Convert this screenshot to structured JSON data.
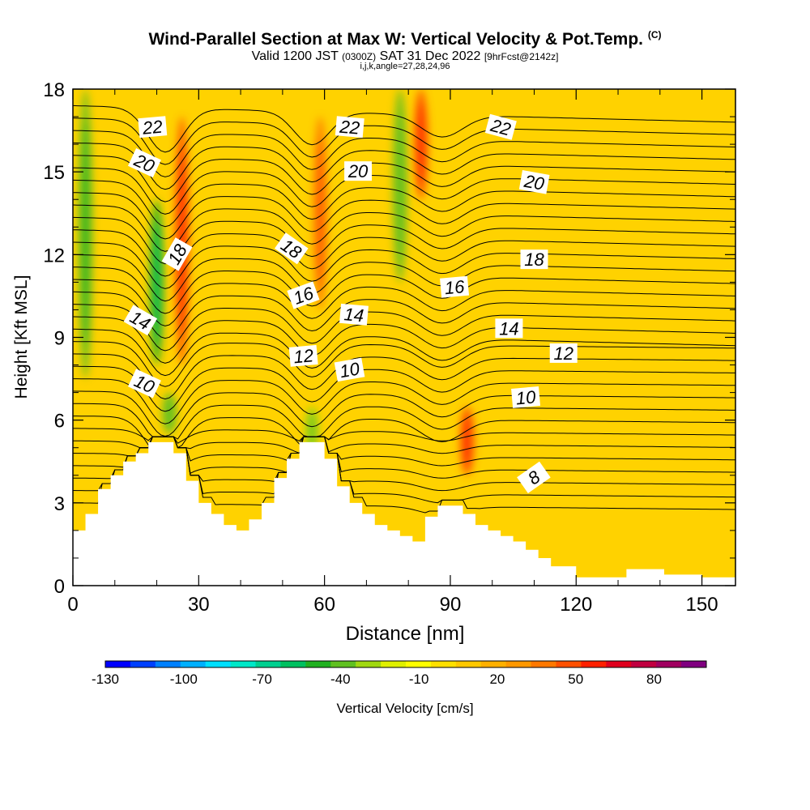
{
  "title": {
    "main": "Wind-Parallel Section at Max W: Vertical Velocity & Pot.Temp.",
    "main_tag": "(C)",
    "line2_a": "Valid 1200 JST",
    "line2_b": "(0300Z)",
    "line2_c": "SAT 31 Dec 2022",
    "line2_d": "[9hrFcst@2142z]",
    "line3": "i,j,k,angle=27,28,24,96"
  },
  "colors": {
    "terrain": "#ffffff",
    "contour": "#000000",
    "background_field": "#ffd200"
  },
  "chart_data": {
    "type": "heatmap",
    "xlabel": "Distance [nm]",
    "ylabel": "Height [Kft MSL]",
    "xlim": [
      0,
      158
    ],
    "ylim": [
      0,
      18
    ],
    "x_ticks": [
      "0",
      "30",
      "60",
      "90",
      "120",
      "150"
    ],
    "y_ticks": [
      "0",
      "3",
      "6",
      "9",
      "12",
      "15",
      "18"
    ],
    "x_tick_values": [
      0,
      30,
      60,
      90,
      120,
      150
    ],
    "y_tick_values": [
      0,
      3,
      6,
      9,
      12,
      15,
      18
    ],
    "grid": false,
    "field": "Vertical Velocity [cm/s] (color) & Pot.Temp. [C] (contours)",
    "colorbar": {
      "label": "Vertical Velocity [cm/s]",
      "tick_labels": [
        "-130",
        "-100",
        "-70",
        "-40",
        "-10",
        "20",
        "50",
        "80"
      ],
      "tick_values": [
        -130,
        -100,
        -70,
        -40,
        -10,
        20,
        50,
        80
      ],
      "min": -130,
      "max": 100,
      "colors": [
        "#0000ff",
        "#0040ff",
        "#0080ff",
        "#00b0ff",
        "#00e0ff",
        "#00e8c8",
        "#00d090",
        "#00c060",
        "#20b020",
        "#60c020",
        "#a0d810",
        "#e0f000",
        "#ffff00",
        "#ffe000",
        "#ffc800",
        "#ffb000",
        "#ff9800",
        "#ff7800",
        "#ff5000",
        "#ff2000",
        "#e0001e",
        "#c00040",
        "#a00060",
        "#800080"
      ]
    },
    "terrain_kft": [
      {
        "x": 0,
        "y": 2.0
      },
      {
        "x": 3,
        "y": 2.6
      },
      {
        "x": 6,
        "y": 3.5
      },
      {
        "x": 9,
        "y": 4.0
      },
      {
        "x": 12,
        "y": 4.5
      },
      {
        "x": 15,
        "y": 4.8
      },
      {
        "x": 18,
        "y": 5.2
      },
      {
        "x": 21,
        "y": 5.2
      },
      {
        "x": 24,
        "y": 4.8
      },
      {
        "x": 27,
        "y": 3.8
      },
      {
        "x": 30,
        "y": 3.0
      },
      {
        "x": 33,
        "y": 2.6
      },
      {
        "x": 36,
        "y": 2.2
      },
      {
        "x": 39,
        "y": 2.0
      },
      {
        "x": 42,
        "y": 2.4
      },
      {
        "x": 45,
        "y": 3.0
      },
      {
        "x": 48,
        "y": 3.9
      },
      {
        "x": 51,
        "y": 4.6
      },
      {
        "x": 54,
        "y": 5.2
      },
      {
        "x": 57,
        "y": 5.2
      },
      {
        "x": 60,
        "y": 4.6
      },
      {
        "x": 63,
        "y": 3.6
      },
      {
        "x": 66,
        "y": 3.0
      },
      {
        "x": 69,
        "y": 2.6
      },
      {
        "x": 72,
        "y": 2.2
      },
      {
        "x": 75,
        "y": 2.0
      },
      {
        "x": 78,
        "y": 1.8
      },
      {
        "x": 81,
        "y": 1.6
      },
      {
        "x": 84,
        "y": 2.5
      },
      {
        "x": 87,
        "y": 2.9
      },
      {
        "x": 90,
        "y": 2.9
      },
      {
        "x": 93,
        "y": 2.6
      },
      {
        "x": 96,
        "y": 2.2
      },
      {
        "x": 99,
        "y": 2.0
      },
      {
        "x": 102,
        "y": 1.8
      },
      {
        "x": 105,
        "y": 1.6
      },
      {
        "x": 108,
        "y": 1.3
      },
      {
        "x": 111,
        "y": 1.0
      },
      {
        "x": 114,
        "y": 0.7
      },
      {
        "x": 117,
        "y": 0.7
      },
      {
        "x": 120,
        "y": 0.3
      },
      {
        "x": 126,
        "y": 0.3
      },
      {
        "x": 132,
        "y": 0.6
      },
      {
        "x": 138,
        "y": 0.6
      },
      {
        "x": 141,
        "y": 0.4
      },
      {
        "x": 150,
        "y": 0.3
      },
      {
        "x": 158,
        "y": 0.3
      }
    ],
    "velocity_features": [
      {
        "x": 3,
        "y0": 7.5,
        "y1": 18,
        "value": -40
      },
      {
        "x": 20,
        "y0": 8.0,
        "y1": 14,
        "value": -45
      },
      {
        "x": 23,
        "y0": 5.5,
        "y1": 7.0,
        "value": -35
      },
      {
        "x": 26,
        "y0": 8.0,
        "y1": 17,
        "value": 50
      },
      {
        "x": 57,
        "y0": 4.8,
        "y1": 6.5,
        "value": -30
      },
      {
        "x": 59,
        "y0": 10,
        "y1": 17,
        "value": 40
      },
      {
        "x": 78,
        "y0": 11,
        "y1": 18,
        "value": -35
      },
      {
        "x": 83,
        "y0": 14,
        "y1": 18,
        "value": 45
      },
      {
        "x": 94,
        "y0": 4.0,
        "y1": 6.5,
        "value": 45
      }
    ],
    "theta_contours": [
      {
        "label": "8",
        "y": 3.9,
        "label_x": 110
      },
      {
        "label": "10",
        "y": 6.9,
        "label_x": 108
      },
      {
        "label": "12",
        "y": 8.4,
        "label_x": 117
      },
      {
        "label": "14",
        "y": 9.3,
        "label_x": 104
      },
      {
        "label": "16",
        "y": 10.8,
        "label_x": 91
      },
      {
        "label": "18",
        "y": 11.8,
        "label_x": 110
      },
      {
        "label": "20",
        "y": 14.5,
        "label_x": 110
      },
      {
        "label": "22",
        "y": 16.6,
        "label_x": 102
      }
    ],
    "contour_labels": [
      {
        "text": "22",
        "x": 19,
        "y": 16.6,
        "rot": -5
      },
      {
        "text": "20",
        "x": 17,
        "y": 15.3,
        "rot": 25
      },
      {
        "text": "18",
        "x": 25,
        "y": 12.0,
        "rot": -60
      },
      {
        "text": "14",
        "x": 16,
        "y": 9.6,
        "rot": 30
      },
      {
        "text": "10",
        "x": 17,
        "y": 7.3,
        "rot": 25
      },
      {
        "text": "22",
        "x": 66,
        "y": 16.6,
        "rot": 5
      },
      {
        "text": "20",
        "x": 68,
        "y": 15.0,
        "rot": 0
      },
      {
        "text": "18",
        "x": 52,
        "y": 12.2,
        "rot": 35
      },
      {
        "text": "16",
        "x": 55,
        "y": 10.5,
        "rot": -20
      },
      {
        "text": "14",
        "x": 67,
        "y": 9.8,
        "rot": 5
      },
      {
        "text": "12",
        "x": 55,
        "y": 8.3,
        "rot": -5
      },
      {
        "text": "10",
        "x": 66,
        "y": 7.8,
        "rot": -10
      },
      {
        "text": "22",
        "x": 102,
        "y": 16.6,
        "rot": 15
      },
      {
        "text": "20",
        "x": 110,
        "y": 14.6,
        "rot": 10
      },
      {
        "text": "18",
        "x": 110,
        "y": 11.8,
        "rot": 0
      },
      {
        "text": "16",
        "x": 91,
        "y": 10.8,
        "rot": -5
      },
      {
        "text": "14",
        "x": 104,
        "y": 9.3,
        "rot": 0
      },
      {
        "text": "12",
        "x": 117,
        "y": 8.4,
        "rot": 0
      },
      {
        "text": "10",
        "x": 108,
        "y": 6.8,
        "rot": -5
      },
      {
        "text": "8",
        "x": 110,
        "y": 3.9,
        "rot": -35
      }
    ]
  }
}
